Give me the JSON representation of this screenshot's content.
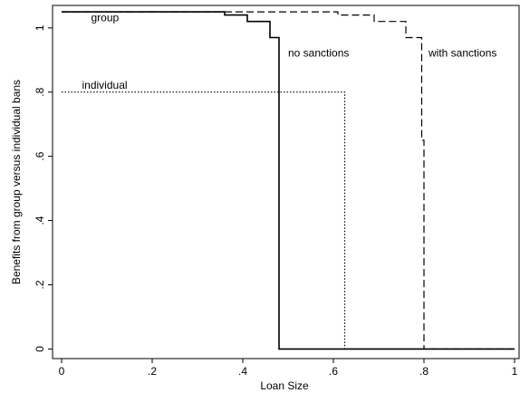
{
  "chart_data": {
    "type": "line",
    "title": "",
    "xlabel": "Loan Size",
    "ylabel": "Benefits from group versus individual bans",
    "xlim": [
      -0.02,
      1.01
    ],
    "ylim": [
      -0.03,
      1.07
    ],
    "grid": false,
    "x_ticks": [
      0,
      0.2,
      0.4,
      0.6,
      0.8,
      1
    ],
    "x_tick_labels": [
      "0",
      ".2",
      ".4",
      ".6",
      ".8",
      "1"
    ],
    "y_ticks": [
      0,
      0.2,
      0.4,
      0.6,
      0.8,
      1
    ],
    "y_tick_labels": [
      "0",
      ".2",
      ".4",
      ".6",
      ".8",
      "1"
    ],
    "series": [
      {
        "id": "group-no-sanctions",
        "style": "solid",
        "points": [
          [
            0,
            1.05
          ],
          [
            0.36,
            1.05
          ],
          [
            0.36,
            1.04
          ],
          [
            0.41,
            1.04
          ],
          [
            0.41,
            1.02
          ],
          [
            0.46,
            1.02
          ],
          [
            0.46,
            0.97
          ],
          [
            0.48,
            0.97
          ],
          [
            0.48,
            0.0
          ],
          [
            1.0,
            0.0
          ]
        ]
      },
      {
        "id": "group-with-sanctions",
        "style": "dashed",
        "points": [
          [
            0,
            1.05
          ],
          [
            0.36,
            1.05
          ],
          [
            0.36,
            1.05
          ],
          [
            0.61,
            1.05
          ],
          [
            0.61,
            1.04
          ],
          [
            0.69,
            1.04
          ],
          [
            0.69,
            1.02
          ],
          [
            0.76,
            1.02
          ],
          [
            0.76,
            0.97
          ],
          [
            0.795,
            0.97
          ],
          [
            0.795,
            0.65
          ],
          [
            0.8,
            0.65
          ],
          [
            0.8,
            0.0
          ],
          [
            1.0,
            0.0
          ]
        ]
      },
      {
        "id": "individual",
        "style": "dotted",
        "points": [
          [
            0,
            0.8
          ],
          [
            0.625,
            0.8
          ],
          [
            0.625,
            0.0
          ],
          [
            0.8,
            0.0
          ]
        ]
      }
    ],
    "annotations": [
      {
        "id": "group",
        "text": "group",
        "x": 0.065,
        "y": 1.02
      },
      {
        "id": "individual",
        "text": "individual",
        "x": 0.045,
        "y": 0.81
      },
      {
        "id": "no-sanctions",
        "text": "no sanctions",
        "x": 0.5,
        "y": 0.91
      },
      {
        "id": "with-sanctions",
        "text": "with  sanctions",
        "x": 0.81,
        "y": 0.91
      }
    ]
  }
}
